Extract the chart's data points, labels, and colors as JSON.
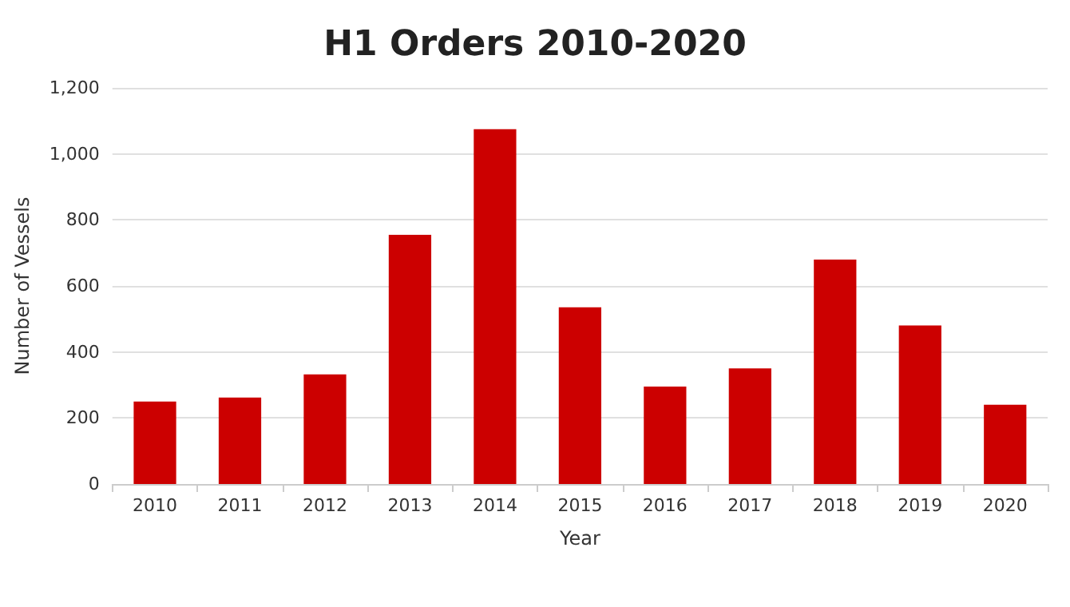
{
  "chart_data": {
    "type": "bar",
    "title": "H1 Orders 2010-2020",
    "xlabel": "Year",
    "ylabel": "Number of Vessels",
    "categories": [
      "2010",
      "2011",
      "2012",
      "2013",
      "2014",
      "2015",
      "2016",
      "2017",
      "2018",
      "2019",
      "2020"
    ],
    "values": [
      250,
      262,
      332,
      755,
      1075,
      535,
      295,
      350,
      680,
      480,
      240
    ],
    "color": "#cc0000",
    "ylim": [
      0,
      1200
    ],
    "yticks": [
      0,
      200,
      400,
      600,
      800,
      {
        "value": 1000,
        "label": "1,000"
      },
      {
        "value": 1200,
        "label": "1,200"
      }
    ],
    "grid": "y"
  }
}
